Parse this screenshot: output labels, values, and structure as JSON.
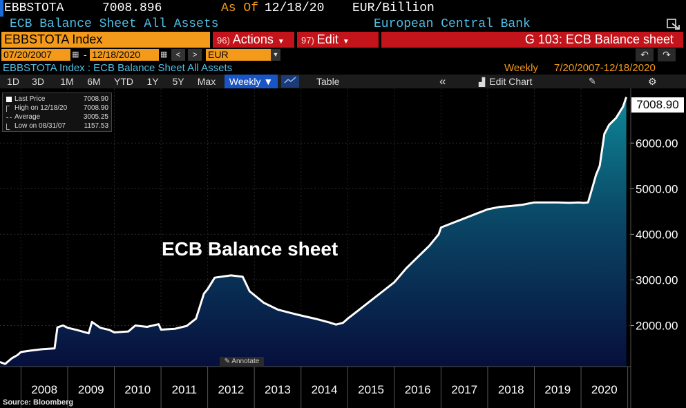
{
  "header": {
    "ticker": "EBBSTOTA",
    "price": "7008.896",
    "as_of_label": "As Of",
    "as_of_date": "12/18/20",
    "units": "EUR/Billion",
    "description": "ECB Balance Sheet All Assets",
    "source_name": "European Central Bank"
  },
  "toolbar": {
    "index_field": "EBBSTOTA Index",
    "actions_num": "96)",
    "actions_label": "Actions",
    "edit_num": "97)",
    "edit_label": "Edit",
    "page_title": "G 103: ECB Balance sheet",
    "start_date": "07/20/2007",
    "end_date": "12/18/2020",
    "date_sep": "-",
    "currency": "EUR",
    "prev_label": "<",
    "next_label": ">",
    "undo_label": "↶",
    "redo_label": "↷",
    "calendar_icon": "calendar-icon",
    "dropdown_icon": "chevron-down-icon"
  },
  "subtitle": {
    "left": "EBBSTOTA Index : ECB Balance Sheet All Assets",
    "frequency": "Weekly",
    "range": "7/20/2007-12/18/2020"
  },
  "range_buttons": [
    "1D",
    "3D",
    "1M",
    "6M",
    "YTD",
    "1Y",
    "5Y",
    "Max"
  ],
  "period": {
    "label": "Weekly ▼"
  },
  "table_label": "Table",
  "collapse_label": "«",
  "edit_chart_label": "Edit Chart",
  "legend": {
    "rows": [
      {
        "label": "Last Price",
        "value": "7008.90"
      },
      {
        "label": "High on 12/18/20",
        "value": "7008.90"
      },
      {
        "label": "Average",
        "value": "3005.25"
      },
      {
        "label": "Low on 08/31/07",
        "value": "1157.53"
      }
    ]
  },
  "annotation": "ECB Balance sheet",
  "annotate_label": "Annotate",
  "source": "Source: Bloomberg",
  "last_value_tag": "7008.90",
  "colors": {
    "background": "#000000",
    "orange": "#f39a1b",
    "red": "#c2141a",
    "cyan": "#4fc0e8",
    "area_top": "#0e7f93",
    "area_bottom": "#07123d",
    "line": "#ffffff"
  },
  "chart_data": {
    "type": "area",
    "title": "ECB Balance sheet",
    "xlabel": "",
    "ylabel": "",
    "x_ticks": [
      "2008",
      "2009",
      "2010",
      "2011",
      "2012",
      "2013",
      "2014",
      "2015",
      "2016",
      "2017",
      "2018",
      "2019",
      "2020"
    ],
    "y_ticks": [
      "2000.00",
      "3000.00",
      "4000.00",
      "5000.00",
      "6000.00"
    ],
    "ylim": [
      1100,
      7200
    ],
    "xlim": [
      2007.55,
      2021.05
    ],
    "grid": true,
    "series": [
      {
        "name": "Last Price",
        "x": [
          2007.55,
          2007.66,
          2007.8,
          2007.92,
          2008.0,
          2008.2,
          2008.45,
          2008.72,
          2008.78,
          2008.9,
          2009.0,
          2009.2,
          2009.45,
          2009.52,
          2009.7,
          2009.9,
          2010.0,
          2010.3,
          2010.45,
          2010.7,
          2010.95,
          2011.0,
          2011.3,
          2011.55,
          2011.75,
          2011.92,
          2012.0,
          2012.15,
          2012.5,
          2012.75,
          2012.9,
          2013.2,
          2013.5,
          2013.8,
          2014.0,
          2014.3,
          2014.6,
          2014.75,
          2014.9,
          2015.0,
          2015.25,
          2015.5,
          2015.75,
          2016.0,
          2016.25,
          2016.5,
          2016.75,
          2016.95,
          2017.0,
          2017.25,
          2017.5,
          2017.75,
          2018.0,
          2018.25,
          2018.5,
          2018.75,
          2019.0,
          2019.25,
          2019.5,
          2019.75,
          2019.95,
          2020.05,
          2020.15,
          2020.25,
          2020.32,
          2020.4,
          2020.5,
          2020.6,
          2020.75,
          2020.9,
          2020.97
        ],
        "values": [
          1200,
          1157.53,
          1280,
          1350,
          1420,
          1450,
          1480,
          1500,
          1960,
          2000,
          1950,
          1900,
          1830,
          2080,
          1950,
          1900,
          1850,
          1870,
          2000,
          1970,
          2030,
          1910,
          1930,
          1990,
          2150,
          2700,
          2800,
          3050,
          3100,
          3070,
          2750,
          2500,
          2350,
          2270,
          2220,
          2150,
          2070,
          2020,
          2060,
          2150,
          2350,
          2550,
          2750,
          2950,
          3250,
          3500,
          3750,
          4000,
          4150,
          4250,
          4350,
          4450,
          4550,
          4600,
          4620,
          4650,
          4700,
          4700,
          4700,
          4690,
          4700,
          4690,
          4700,
          5050,
          5300,
          5500,
          6200,
          6400,
          6550,
          6800,
          7008.9
        ]
      }
    ]
  }
}
